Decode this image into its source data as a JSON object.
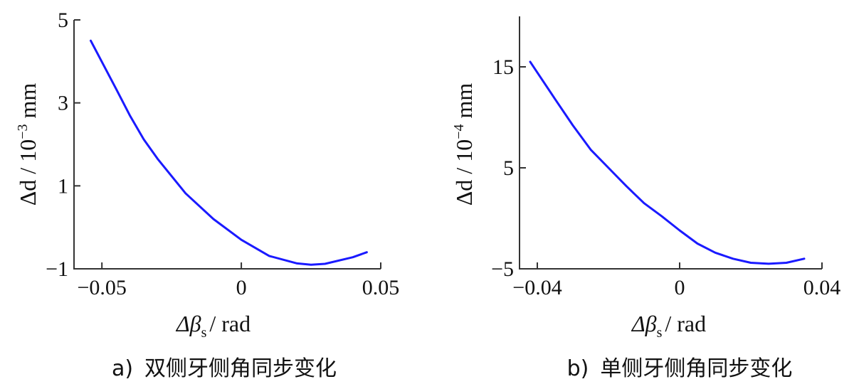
{
  "chart_data": [
    {
      "type": "line",
      "panel_label": "a)",
      "caption": "双侧牙侧角同步变化",
      "xlabel_main": "Δβ",
      "xlabel_sub": "s",
      "xlabel_unit": "/ rad",
      "ylabel_main": "Δd / 10",
      "ylabel_exp": "−3",
      "ylabel_unit": " mm",
      "xlim": [
        -0.06,
        0.05
      ],
      "ylim": [
        -1,
        5
      ],
      "xticks": [
        -0.05,
        0,
        0.05
      ],
      "xtick_labels": [
        "−0.05",
        "0",
        "0.05"
      ],
      "yticks": [
        -1,
        1,
        3,
        5
      ],
      "ytick_labels": [
        "−1",
        "1",
        "3",
        "5"
      ],
      "series": [
        {
          "color": "#1a1aff",
          "x": [
            -0.054,
            -0.045,
            -0.04,
            -0.035,
            -0.03,
            -0.02,
            -0.01,
            0.0,
            0.01,
            0.02,
            0.025,
            0.03,
            0.04,
            0.045
          ],
          "y": [
            4.5,
            3.35,
            2.7,
            2.12,
            1.65,
            0.82,
            0.2,
            -0.3,
            -0.69,
            -0.87,
            -0.9,
            -0.88,
            -0.72,
            -0.6
          ]
        }
      ]
    },
    {
      "type": "line",
      "panel_label": "b)",
      "caption": "单侧牙侧角同步变化",
      "xlabel_main": "Δβ",
      "xlabel_sub": "s",
      "xlabel_unit": "/ rad",
      "ylabel_main": "Δd / 10",
      "ylabel_exp": "−4",
      "ylabel_unit": " mm",
      "xlim": [
        -0.045,
        0.04
      ],
      "ylim": [
        -5,
        20
      ],
      "xticks": [
        -0.04,
        0,
        0.04
      ],
      "xtick_labels": [
        "−0.04",
        "0",
        "0.04"
      ],
      "yticks": [
        -5,
        5,
        15
      ],
      "ytick_labels": [
        "−5",
        "5",
        "15"
      ],
      "series": [
        {
          "color": "#1a1aff",
          "x": [
            -0.042,
            -0.035,
            -0.03,
            -0.025,
            -0.02,
            -0.015,
            -0.01,
            -0.005,
            0.0,
            0.005,
            0.01,
            0.015,
            0.02,
            0.025,
            0.03,
            0.035
          ],
          "y": [
            15.5,
            11.8,
            9.2,
            6.8,
            5.0,
            3.2,
            1.5,
            0.2,
            -1.2,
            -2.5,
            -3.4,
            -4.0,
            -4.4,
            -4.5,
            -4.4,
            -4.0
          ]
        }
      ]
    }
  ]
}
